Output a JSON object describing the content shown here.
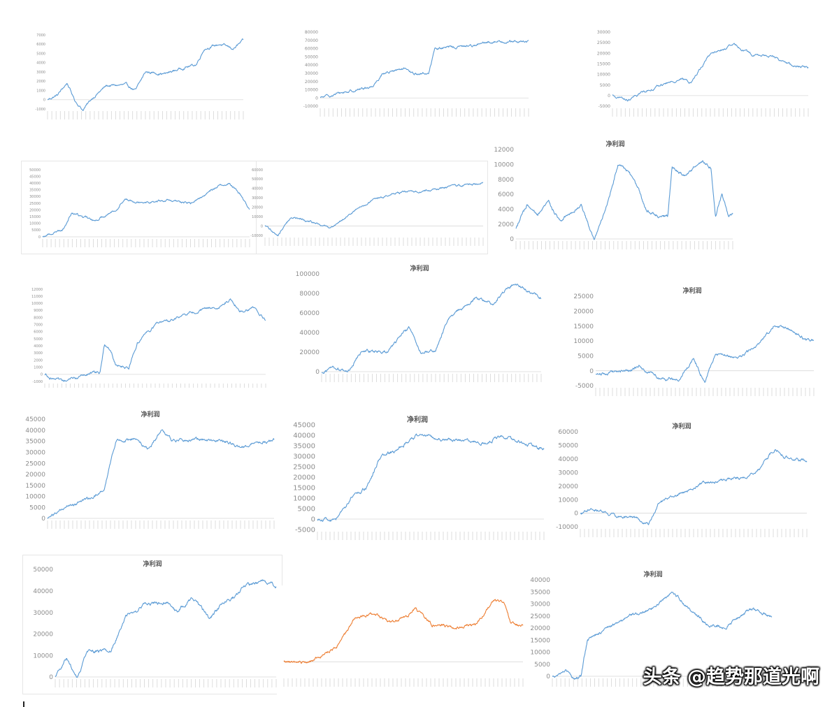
{
  "watermark": "头条 @趋势那道光啊",
  "colors": {
    "blue": "#5b9bd5",
    "orange": "#ed7d31",
    "axis": "#d9d9d9",
    "label": "#8c8c8c"
  },
  "chart_data": [
    {
      "type": "line",
      "title": "",
      "color": "#5b9bd5",
      "ylim": [
        -1000,
        7000
      ],
      "yticks": [
        -1000,
        0,
        1000,
        2000,
        3000,
        4000,
        5000,
        6000,
        7000
      ],
      "n": 420,
      "knots": [
        [
          0,
          0
        ],
        [
          0.05,
          500
        ],
        [
          0.1,
          1800
        ],
        [
          0.14,
          -100
        ],
        [
          0.18,
          -1100
        ],
        [
          0.23,
          200
        ],
        [
          0.3,
          1500
        ],
        [
          0.4,
          1600
        ],
        [
          0.45,
          1000
        ],
        [
          0.5,
          3000
        ],
        [
          0.6,
          2800
        ],
        [
          0.7,
          3500
        ],
        [
          0.76,
          3800
        ],
        [
          0.8,
          5500
        ],
        [
          0.88,
          6000
        ],
        [
          0.95,
          5500
        ],
        [
          1,
          6400
        ]
      ]
    },
    {
      "type": "line",
      "title": "",
      "color": "#5b9bd5",
      "ylim": [
        -10000,
        80000
      ],
      "yticks": [
        -10000,
        0,
        10000,
        20000,
        30000,
        40000,
        50000,
        60000,
        70000,
        80000
      ],
      "n": 480,
      "knots": [
        [
          0,
          0
        ],
        [
          0.1,
          6000
        ],
        [
          0.25,
          14000
        ],
        [
          0.3,
          30000
        ],
        [
          0.4,
          35000
        ],
        [
          0.45,
          29000
        ],
        [
          0.52,
          30000
        ],
        [
          0.55,
          60000
        ],
        [
          0.7,
          63000
        ],
        [
          0.78,
          66000
        ],
        [
          0.85,
          69000
        ],
        [
          1,
          68000
        ]
      ]
    },
    {
      "type": "line",
      "title": "",
      "color": "#5b9bd5",
      "ylim": [
        -5000,
        30000
      ],
      "yticks": [
        -5000,
        0,
        5000,
        10000,
        15000,
        20000,
        25000,
        30000
      ],
      "n": 420,
      "knots": [
        [
          0,
          0
        ],
        [
          0.08,
          -2500
        ],
        [
          0.15,
          1500
        ],
        [
          0.25,
          5000
        ],
        [
          0.35,
          8000
        ],
        [
          0.4,
          6000
        ],
        [
          0.5,
          20000
        ],
        [
          0.58,
          22000
        ],
        [
          0.62,
          24000
        ],
        [
          0.72,
          19000
        ],
        [
          0.8,
          19000
        ],
        [
          0.88,
          16000
        ],
        [
          0.92,
          14000
        ],
        [
          1,
          13500
        ]
      ]
    },
    {
      "type": "line",
      "title": "",
      "color": "#5b9bd5",
      "ylim": [
        0,
        50000
      ],
      "yticks": [
        0,
        5000,
        10000,
        15000,
        20000,
        25000,
        30000,
        35000,
        40000,
        45000,
        50000
      ],
      "n": 460,
      "knots": [
        [
          0,
          0
        ],
        [
          0.1,
          6000
        ],
        [
          0.14,
          18000
        ],
        [
          0.25,
          12000
        ],
        [
          0.35,
          20000
        ],
        [
          0.4,
          28000
        ],
        [
          0.5,
          26000
        ],
        [
          0.6,
          27000
        ],
        [
          0.72,
          25000
        ],
        [
          0.85,
          38000
        ],
        [
          0.9,
          40000
        ],
        [
          0.95,
          33000
        ],
        [
          1,
          20000
        ]
      ]
    },
    {
      "type": "line",
      "title": "",
      "color": "#5b9bd5",
      "ylim": [
        -10000,
        60000
      ],
      "yticks": [
        -10000,
        0,
        10000,
        20000,
        30000,
        40000,
        50000,
        60000
      ],
      "n": 460,
      "knots": [
        [
          0,
          0
        ],
        [
          0.06,
          -10000
        ],
        [
          0.12,
          10000
        ],
        [
          0.2,
          5000
        ],
        [
          0.3,
          -2000
        ],
        [
          0.4,
          15000
        ],
        [
          0.5,
          28000
        ],
        [
          0.6,
          35000
        ],
        [
          0.75,
          38000
        ],
        [
          0.85,
          42000
        ],
        [
          1,
          46000
        ]
      ]
    },
    {
      "type": "line",
      "title": "净利润",
      "color": "#5b9bd5",
      "ylim": [
        0,
        12000
      ],
      "yticks": [
        0,
        2000,
        4000,
        6000,
        8000,
        10000,
        12000
      ],
      "n": 520,
      "knots": [
        [
          0,
          1500
        ],
        [
          0.05,
          4500
        ],
        [
          0.1,
          3000
        ],
        [
          0.15,
          5000
        ],
        [
          0.2,
          2500
        ],
        [
          0.3,
          4500
        ],
        [
          0.36,
          0
        ],
        [
          0.4,
          3000
        ],
        [
          0.43,
          5500
        ],
        [
          0.47,
          10000
        ],
        [
          0.52,
          9000
        ],
        [
          0.56,
          7000
        ],
        [
          0.6,
          4000
        ],
        [
          0.66,
          3000
        ],
        [
          0.7,
          3000
        ],
        [
          0.72,
          9500
        ],
        [
          0.78,
          8500
        ],
        [
          0.86,
          10500
        ],
        [
          0.9,
          9500
        ],
        [
          0.92,
          3000
        ],
        [
          0.95,
          6000
        ],
        [
          0.98,
          3000
        ],
        [
          1,
          3500
        ]
      ]
    },
    {
      "type": "line",
      "title": "",
      "color": "#5b9bd5",
      "ylim": [
        -1000,
        12000
      ],
      "yticks": [
        -1000,
        0,
        1000,
        2000,
        3000,
        4000,
        5000,
        6000,
        7000,
        8000,
        9000,
        10000,
        11000,
        12000
      ],
      "n": 440,
      "knots": [
        [
          0,
          0
        ],
        [
          0.08,
          -1200
        ],
        [
          0.18,
          0
        ],
        [
          0.25,
          200
        ],
        [
          0.27,
          4000
        ],
        [
          0.3,
          3500
        ],
        [
          0.32,
          1500
        ],
        [
          0.38,
          1000
        ],
        [
          0.42,
          4500
        ],
        [
          0.5,
          7000
        ],
        [
          0.6,
          8000
        ],
        [
          0.7,
          9000
        ],
        [
          0.78,
          9500
        ],
        [
          0.84,
          10500
        ],
        [
          0.9,
          8500
        ],
        [
          0.95,
          9500
        ],
        [
          1,
          7500
        ]
      ]
    },
    {
      "type": "line",
      "title": "净利润",
      "color": "#5b9bd5",
      "ylim": [
        0,
        100000
      ],
      "yticks": [
        0,
        20000,
        40000,
        60000,
        80000,
        100000
      ],
      "n": 460,
      "knots": [
        [
          0,
          0
        ],
        [
          0.05,
          5000
        ],
        [
          0.12,
          0
        ],
        [
          0.18,
          20000
        ],
        [
          0.3,
          22000
        ],
        [
          0.4,
          45000
        ],
        [
          0.45,
          20000
        ],
        [
          0.52,
          22000
        ],
        [
          0.58,
          55000
        ],
        [
          0.7,
          75000
        ],
        [
          0.78,
          70000
        ],
        [
          0.88,
          92000
        ],
        [
          0.95,
          80000
        ],
        [
          1,
          75000
        ]
      ]
    },
    {
      "type": "line",
      "title": "净利润",
      "color": "#5b9bd5",
      "ylim": [
        -5000,
        25000
      ],
      "yticks": [
        -5000,
        0,
        5000,
        10000,
        15000,
        20000,
        25000
      ],
      "n": 480,
      "knots": [
        [
          0,
          -1000
        ],
        [
          0.15,
          0
        ],
        [
          0.2,
          1500
        ],
        [
          0.28,
          -2000
        ],
        [
          0.38,
          -3000
        ],
        [
          0.45,
          4000
        ],
        [
          0.5,
          -3500
        ],
        [
          0.55,
          6000
        ],
        [
          0.65,
          4000
        ],
        [
          0.75,
          9000
        ],
        [
          0.82,
          15500
        ],
        [
          0.9,
          13500
        ],
        [
          0.95,
          11000
        ],
        [
          1,
          10000
        ]
      ]
    },
    {
      "type": "line",
      "title": "净利润",
      "color": "#5b9bd5",
      "ylim": [
        0,
        45000
      ],
      "yticks": [
        0,
        5000,
        10000,
        15000,
        20000,
        25000,
        30000,
        35000,
        40000,
        45000
      ],
      "n": 460,
      "knots": [
        [
          0,
          0
        ],
        [
          0.1,
          6000
        ],
        [
          0.2,
          9000
        ],
        [
          0.25,
          13000
        ],
        [
          0.3,
          35000
        ],
        [
          0.38,
          36000
        ],
        [
          0.45,
          31000
        ],
        [
          0.5,
          40000
        ],
        [
          0.55,
          35000
        ],
        [
          0.65,
          36000
        ],
        [
          0.75,
          35500
        ],
        [
          0.85,
          33000
        ],
        [
          0.92,
          34000
        ],
        [
          1,
          35500
        ]
      ]
    },
    {
      "type": "line",
      "title": "净利润",
      "color": "#5b9bd5",
      "ylim": [
        -5000,
        45000
      ],
      "yticks": [
        -5000,
        0,
        5000,
        10000,
        15000,
        20000,
        25000,
        30000,
        35000,
        40000,
        45000
      ],
      "n": 480,
      "knots": [
        [
          0,
          0
        ],
        [
          0.08,
          -1000
        ],
        [
          0.15,
          10000
        ],
        [
          0.22,
          15000
        ],
        [
          0.28,
          30000
        ],
        [
          0.35,
          33000
        ],
        [
          0.45,
          41000
        ],
        [
          0.55,
          38000
        ],
        [
          0.65,
          37000
        ],
        [
          0.75,
          36000
        ],
        [
          0.8,
          40000
        ],
        [
          0.9,
          37000
        ],
        [
          1,
          33000
        ]
      ]
    },
    {
      "type": "line",
      "title": "净利润",
      "color": "#5b9bd5",
      "ylim": [
        -10000,
        60000
      ],
      "yticks": [
        -10000,
        0,
        10000,
        20000,
        30000,
        40000,
        50000,
        60000
      ],
      "n": 480,
      "knots": [
        [
          0,
          0
        ],
        [
          0.05,
          4000
        ],
        [
          0.15,
          -2000
        ],
        [
          0.25,
          -4000
        ],
        [
          0.3,
          -8000
        ],
        [
          0.35,
          8000
        ],
        [
          0.45,
          15000
        ],
        [
          0.55,
          22000
        ],
        [
          0.65,
          25000
        ],
        [
          0.75,
          28000
        ],
        [
          0.8,
          35000
        ],
        [
          0.86,
          48000
        ],
        [
          0.9,
          42000
        ],
        [
          1,
          38000
        ]
      ]
    },
    {
      "type": "line",
      "title": "净利润",
      "color": "#5b9bd5",
      "ylim": [
        0,
        50000
      ],
      "yticks": [
        0,
        10000,
        20000,
        30000,
        40000,
        50000
      ],
      "n": 480,
      "knots": [
        [
          0,
          0
        ],
        [
          0.05,
          8000
        ],
        [
          0.1,
          0
        ],
        [
          0.15,
          12000
        ],
        [
          0.25,
          12000
        ],
        [
          0.32,
          28000
        ],
        [
          0.4,
          33000
        ],
        [
          0.5,
          35000
        ],
        [
          0.55,
          30000
        ],
        [
          0.62,
          37000
        ],
        [
          0.7,
          27000
        ],
        [
          0.76,
          35000
        ],
        [
          0.82,
          38000
        ],
        [
          0.87,
          43000
        ],
        [
          0.95,
          45000
        ],
        [
          1,
          42000
        ]
      ]
    },
    {
      "type": "line",
      "title": "",
      "color": "#ed7d31",
      "ylim": [
        -200000,
        1000000
      ],
      "yticks": [],
      "n": 520,
      "knots": [
        [
          0,
          0
        ],
        [
          0.1,
          -10000
        ],
        [
          0.22,
          200000
        ],
        [
          0.3,
          600000
        ],
        [
          0.38,
          650000
        ],
        [
          0.45,
          550000
        ],
        [
          0.52,
          650000
        ],
        [
          0.55,
          750000
        ],
        [
          0.62,
          520000
        ],
        [
          0.72,
          480000
        ],
        [
          0.8,
          520000
        ],
        [
          0.88,
          850000
        ],
        [
          0.92,
          820000
        ],
        [
          0.95,
          520000
        ],
        [
          1,
          500000
        ]
      ]
    },
    {
      "type": "line",
      "title": "净利润",
      "color": "#5b9bd5",
      "ylim": [
        0,
        40000
      ],
      "yticks": [
        0,
        5000,
        10000,
        15000,
        20000,
        25000,
        30000,
        35000,
        40000
      ],
      "n": 480,
      "knots": [
        [
          0,
          0
        ],
        [
          0.06,
          2000
        ],
        [
          0.1,
          -1000
        ],
        [
          0.13,
          0
        ],
        [
          0.16,
          15000
        ],
        [
          0.25,
          20000
        ],
        [
          0.35,
          25000
        ],
        [
          0.45,
          28000
        ],
        [
          0.55,
          35000
        ],
        [
          0.62,
          28000
        ],
        [
          0.7,
          22000
        ],
        [
          0.78,
          20000
        ],
        [
          0.86,
          25000
        ],
        [
          0.9,
          28000
        ],
        [
          1,
          25000
        ]
      ]
    }
  ]
}
